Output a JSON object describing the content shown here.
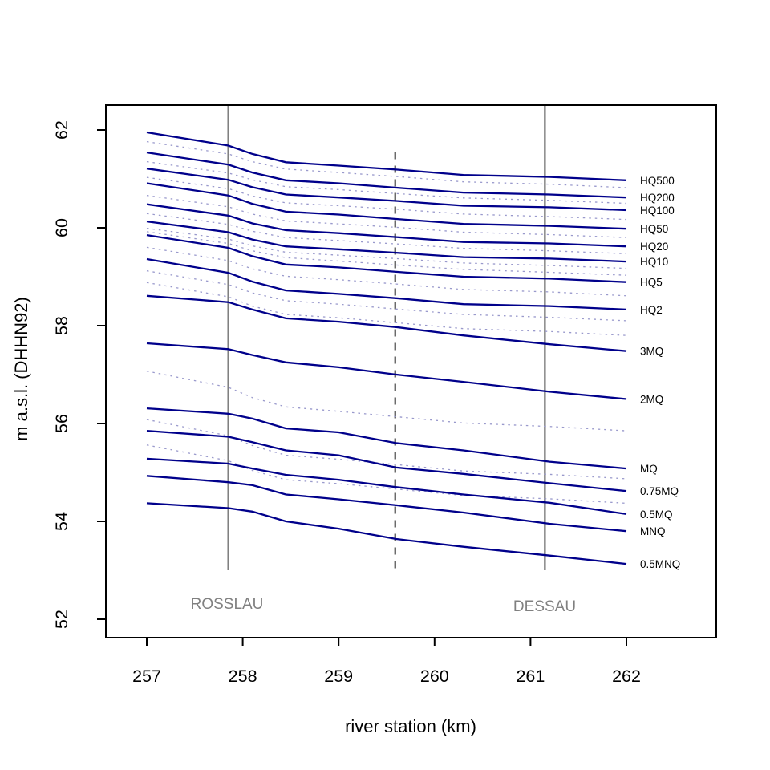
{
  "chart_data": {
    "type": "line",
    "title": "",
    "xlabel": "river station (km)",
    "ylabel": "m a.s.l. (DHHN92)",
    "xlim": [
      256.57,
      262.94
    ],
    "ylim": [
      51.62,
      62.51
    ],
    "x_ticks": [
      257,
      258,
      259,
      260,
      261,
      262
    ],
    "y_ticks": [
      52,
      54,
      56,
      58,
      60,
      62
    ],
    "grid": false,
    "legend_position": "right-of-line-ends",
    "colors": {
      "solid_line": "#00008B",
      "dotted_line": "#9999CC",
      "landmark_line": "#808080",
      "landmark_dashed_line": "#666666",
      "axis": "#000000",
      "station_text": "#808080"
    },
    "x": [
      257,
      257.85,
      258.1,
      258.45,
      259.0,
      259.6,
      260.3,
      261.2,
      262
    ],
    "series": [
      {
        "name": "HQ500",
        "style": "solid",
        "values": [
          61.95,
          61.68,
          61.51,
          61.34,
          61.27,
          61.19,
          61.08,
          61.04,
          60.97
        ]
      },
      {
        "name": "HQ200",
        "style": "solid",
        "values": [
          61.54,
          61.29,
          61.13,
          60.97,
          60.91,
          60.82,
          60.72,
          60.68,
          60.62
        ]
      },
      {
        "name": "HQ100",
        "style": "solid",
        "values": [
          61.21,
          60.98,
          60.83,
          60.68,
          60.62,
          60.55,
          60.45,
          60.42,
          60.36
        ]
      },
      {
        "name": "HQ50",
        "style": "solid",
        "values": [
          60.91,
          60.66,
          60.49,
          60.33,
          60.27,
          60.18,
          60.08,
          60.04,
          59.98
        ]
      },
      {
        "name": "HQ20",
        "style": "solid",
        "values": [
          60.48,
          60.25,
          60.09,
          59.95,
          59.89,
          59.81,
          59.71,
          59.68,
          59.62
        ]
      },
      {
        "name": "HQ10",
        "style": "solid",
        "values": [
          60.13,
          59.91,
          59.76,
          59.62,
          59.56,
          59.49,
          59.4,
          59.37,
          59.31
        ]
      },
      {
        "name": "HQ5",
        "style": "solid",
        "values": [
          59.85,
          59.59,
          59.42,
          59.25,
          59.19,
          59.1,
          59.0,
          58.96,
          58.89
        ]
      },
      {
        "name": "HQ2",
        "style": "solid",
        "values": [
          59.36,
          59.08,
          58.9,
          58.72,
          58.65,
          58.56,
          58.44,
          58.4,
          58.33
        ]
      },
      {
        "name": "3MQ",
        "style": "solid",
        "values": [
          58.61,
          58.48,
          58.33,
          58.15,
          58.08,
          57.97,
          57.8,
          57.62,
          57.48
        ]
      },
      {
        "name": "2MQ",
        "style": "solid",
        "values": [
          57.64,
          57.52,
          57.4,
          57.25,
          57.15,
          57.0,
          56.85,
          56.65,
          56.5
        ]
      },
      {
        "name": "MQ",
        "style": "solid",
        "values": [
          56.31,
          56.2,
          56.1,
          55.9,
          55.82,
          55.6,
          55.45,
          55.22,
          55.08
        ]
      },
      {
        "name": "0.75MQ",
        "style": "solid",
        "values": [
          55.85,
          55.73,
          55.62,
          55.45,
          55.35,
          55.1,
          54.97,
          54.78,
          54.62
        ]
      },
      {
        "name": "0.5MQ",
        "style": "solid",
        "values": [
          55.28,
          55.18,
          55.08,
          54.95,
          54.85,
          54.7,
          54.55,
          54.38,
          54.15
        ]
      },
      {
        "name": "MNQ",
        "style": "solid",
        "values": [
          54.93,
          54.8,
          54.74,
          54.55,
          54.45,
          54.33,
          54.18,
          53.95,
          53.8
        ]
      },
      {
        "name": "0.5MNQ",
        "style": "solid",
        "values": [
          54.37,
          54.27,
          54.2,
          54.0,
          53.85,
          53.64,
          53.48,
          53.3,
          53.13
        ]
      },
      {
        "name": "",
        "style": "dotted",
        "values": [
          61.76,
          61.51,
          61.35,
          61.2,
          61.13,
          61.05,
          60.94,
          60.89,
          60.82
        ]
      },
      {
        "name": "",
        "style": "dotted",
        "values": [
          61.35,
          61.12,
          60.98,
          60.84,
          60.78,
          60.7,
          60.61,
          60.56,
          60.5
        ]
      },
      {
        "name": "",
        "style": "dotted",
        "values": [
          61.03,
          60.8,
          60.65,
          60.51,
          60.45,
          60.38,
          60.28,
          60.23,
          60.17
        ]
      },
      {
        "name": "",
        "style": "dotted",
        "values": [
          60.66,
          60.43,
          60.28,
          60.14,
          60.08,
          60.01,
          59.91,
          59.86,
          59.8
        ]
      },
      {
        "name": "",
        "style": "dotted",
        "values": [
          60.29,
          60.07,
          59.93,
          59.8,
          59.74,
          59.67,
          59.58,
          59.53,
          59.47
        ]
      },
      {
        "name": "",
        "style": "dotted",
        "values": [
          59.99,
          59.77,
          59.63,
          59.5,
          59.44,
          59.37,
          59.28,
          59.23,
          59.17
        ]
      },
      {
        "name": "",
        "style": "dotted",
        "values": [
          59.92,
          59.68,
          59.53,
          59.39,
          59.32,
          59.24,
          59.15,
          59.09,
          59.03
        ]
      },
      {
        "name": "",
        "style": "dotted",
        "values": [
          59.6,
          59.33,
          59.16,
          59.01,
          58.94,
          58.85,
          58.74,
          58.69,
          58.61
        ]
      },
      {
        "name": "",
        "style": "dotted",
        "values": [
          59.12,
          58.84,
          58.67,
          58.51,
          58.44,
          58.34,
          58.23,
          58.17,
          58.1
        ]
      },
      {
        "name": "",
        "style": "dotted",
        "values": [
          58.88,
          58.59,
          58.4,
          58.23,
          58.16,
          58.06,
          57.94,
          57.88,
          57.8
        ]
      },
      {
        "name": "",
        "style": "dotted",
        "values": [
          57.07,
          56.74,
          56.53,
          56.34,
          56.25,
          56.14,
          56.01,
          55.94,
          55.85
        ]
      },
      {
        "name": "",
        "style": "dotted",
        "values": [
          56.08,
          55.75,
          55.55,
          55.35,
          55.27,
          55.16,
          55.03,
          54.96,
          54.87
        ]
      },
      {
        "name": "",
        "style": "dotted",
        "values": [
          55.56,
          55.24,
          55.04,
          54.85,
          54.77,
          54.66,
          54.53,
          54.46,
          54.37
        ]
      }
    ],
    "landmarks": [
      {
        "name": "ROSSLAU",
        "km": 257.85,
        "style": "solid",
        "v_top": 62.51,
        "v_bottom": 53.0,
        "label_v": 52.3
      },
      {
        "name": "DESSAU",
        "km": 261.15,
        "style": "solid",
        "v_top": 62.51,
        "v_bottom": 53.0,
        "label_v": 52.3
      },
      {
        "name": "",
        "km": 259.59,
        "style": "dashed",
        "v_top": 61.55,
        "v_bottom": 52.97
      }
    ]
  }
}
